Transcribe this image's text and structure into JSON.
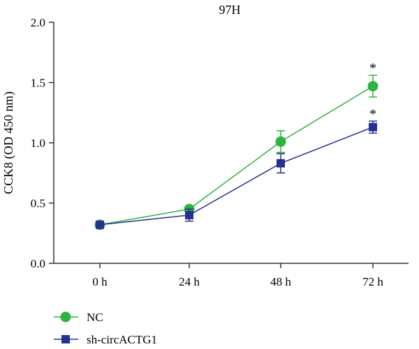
{
  "chart_data": {
    "type": "line",
    "title": "97H",
    "xlabel": "",
    "ylabel": "CCK8 (OD 450 nm)",
    "categories": [
      "0 h",
      "24 h",
      "48 h",
      "72 h"
    ],
    "ylim": [
      0,
      2.0
    ],
    "yticks": [
      "0.0",
      "0.5",
      "1.0",
      "1.5",
      "2.0"
    ],
    "series": [
      {
        "name": "NC",
        "color": "#2bb43f",
        "marker": "circle",
        "values": [
          0.32,
          0.45,
          1.01,
          1.47
        ],
        "errors": [
          0.02,
          0.02,
          0.09,
          0.09
        ],
        "annotations": [
          "",
          "",
          "",
          "*"
        ]
      },
      {
        "name": "sh-circACTG1",
        "color": "#23318f",
        "marker": "square",
        "values": [
          0.32,
          0.4,
          0.83,
          1.13
        ],
        "errors": [
          0.02,
          0.05,
          0.08,
          0.05
        ],
        "annotations": [
          "",
          "",
          "",
          "*"
        ]
      }
    ],
    "grid": false,
    "legend": "bottom-left"
  }
}
